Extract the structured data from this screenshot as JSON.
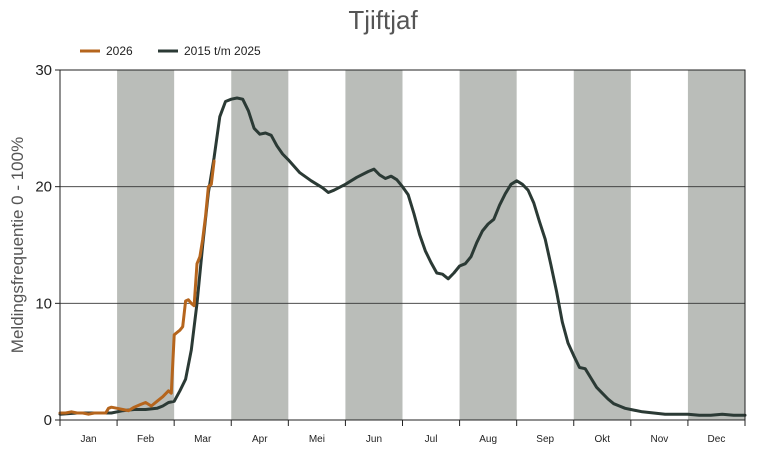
{
  "chart_data": {
    "type": "line",
    "title": "Tjiftjaf",
    "xlabel": "",
    "ylabel": "Meldingsfrequentie 0 - 100%",
    "ylim": [
      0,
      30
    ],
    "yticks": [
      0,
      10,
      20,
      30
    ],
    "months": [
      "Jan",
      "Feb",
      "Mar",
      "Apr",
      "Mei",
      "Jun",
      "Jul",
      "Aug",
      "Sep",
      "Okt",
      "Nov",
      "Dec"
    ],
    "shaded_months": [
      "Feb",
      "Apr",
      "Jun",
      "Aug",
      "Okt",
      "Dec"
    ],
    "legend_position": "top-left",
    "grid": "horizontal",
    "series": [
      {
        "name": "2026",
        "color": "#b5651d",
        "points": [
          [
            0.0,
            0.6
          ],
          [
            0.1,
            0.6
          ],
          [
            0.2,
            0.7
          ],
          [
            0.3,
            0.6
          ],
          [
            0.4,
            0.6
          ],
          [
            0.5,
            0.5
          ],
          [
            0.6,
            0.6
          ],
          [
            0.7,
            0.6
          ],
          [
            0.8,
            0.6
          ],
          [
            0.85,
            1.0
          ],
          [
            0.9,
            1.1
          ],
          [
            1.0,
            1.0
          ],
          [
            1.1,
            0.9
          ],
          [
            1.2,
            0.8
          ],
          [
            1.3,
            1.1
          ],
          [
            1.4,
            1.3
          ],
          [
            1.5,
            1.5
          ],
          [
            1.6,
            1.2
          ],
          [
            1.7,
            1.6
          ],
          [
            1.8,
            2.0
          ],
          [
            1.9,
            2.5
          ],
          [
            1.95,
            2.3
          ],
          [
            2.0,
            7.3
          ],
          [
            2.05,
            7.5
          ],
          [
            2.1,
            7.7
          ],
          [
            2.15,
            8.0
          ],
          [
            2.2,
            10.2
          ],
          [
            2.25,
            10.3
          ],
          [
            2.3,
            10.0
          ],
          [
            2.35,
            9.8
          ],
          [
            2.4,
            13.4
          ],
          [
            2.45,
            14.0
          ],
          [
            2.5,
            15.5
          ],
          [
            2.55,
            17.5
          ],
          [
            2.6,
            20.0
          ],
          [
            2.65,
            20.2
          ],
          [
            2.7,
            22.2
          ]
        ]
      },
      {
        "name": "2015 t/m 2025",
        "color": "#2b3a35",
        "points": [
          [
            0.0,
            0.5
          ],
          [
            0.3,
            0.6
          ],
          [
            0.6,
            0.6
          ],
          [
            0.9,
            0.6
          ],
          [
            1.1,
            0.8
          ],
          [
            1.3,
            0.9
          ],
          [
            1.5,
            0.9
          ],
          [
            1.7,
            1.0
          ],
          [
            1.8,
            1.2
          ],
          [
            1.9,
            1.5
          ],
          [
            2.0,
            1.6
          ],
          [
            2.1,
            2.5
          ],
          [
            2.2,
            3.5
          ],
          [
            2.3,
            6.0
          ],
          [
            2.4,
            10.0
          ],
          [
            2.5,
            15.0
          ],
          [
            2.6,
            19.5
          ],
          [
            2.7,
            22.5
          ],
          [
            2.8,
            26.0
          ],
          [
            2.9,
            27.3
          ],
          [
            3.0,
            27.5
          ],
          [
            3.1,
            27.6
          ],
          [
            3.2,
            27.5
          ],
          [
            3.3,
            26.5
          ],
          [
            3.4,
            25.0
          ],
          [
            3.5,
            24.5
          ],
          [
            3.6,
            24.6
          ],
          [
            3.7,
            24.4
          ],
          [
            3.8,
            23.5
          ],
          [
            3.9,
            22.8
          ],
          [
            4.0,
            22.3
          ],
          [
            4.2,
            21.2
          ],
          [
            4.4,
            20.5
          ],
          [
            4.6,
            19.9
          ],
          [
            4.7,
            19.5
          ],
          [
            4.8,
            19.7
          ],
          [
            5.0,
            20.2
          ],
          [
            5.2,
            20.8
          ],
          [
            5.4,
            21.3
          ],
          [
            5.5,
            21.5
          ],
          [
            5.6,
            21.0
          ],
          [
            5.7,
            20.7
          ],
          [
            5.8,
            20.9
          ],
          [
            5.9,
            20.6
          ],
          [
            6.0,
            20.0
          ],
          [
            6.1,
            19.3
          ],
          [
            6.2,
            17.7
          ],
          [
            6.3,
            15.9
          ],
          [
            6.4,
            14.5
          ],
          [
            6.5,
            13.5
          ],
          [
            6.6,
            12.6
          ],
          [
            6.7,
            12.5
          ],
          [
            6.8,
            12.1
          ],
          [
            6.9,
            12.6
          ],
          [
            7.0,
            13.2
          ],
          [
            7.1,
            13.4
          ],
          [
            7.2,
            14.0
          ],
          [
            7.3,
            15.2
          ],
          [
            7.4,
            16.2
          ],
          [
            7.5,
            16.8
          ],
          [
            7.6,
            17.2
          ],
          [
            7.7,
            18.4
          ],
          [
            7.8,
            19.4
          ],
          [
            7.9,
            20.2
          ],
          [
            8.0,
            20.5
          ],
          [
            8.1,
            20.2
          ],
          [
            8.2,
            19.7
          ],
          [
            8.3,
            18.6
          ],
          [
            8.4,
            17.0
          ],
          [
            8.5,
            15.5
          ],
          [
            8.6,
            13.3
          ],
          [
            8.7,
            11.0
          ],
          [
            8.8,
            8.4
          ],
          [
            8.9,
            6.6
          ],
          [
            9.0,
            5.5
          ],
          [
            9.1,
            4.5
          ],
          [
            9.2,
            4.4
          ],
          [
            9.3,
            3.6
          ],
          [
            9.4,
            2.8
          ],
          [
            9.5,
            2.3
          ],
          [
            9.6,
            1.8
          ],
          [
            9.7,
            1.4
          ],
          [
            9.8,
            1.2
          ],
          [
            9.9,
            1.0
          ],
          [
            10.0,
            0.9
          ],
          [
            10.2,
            0.7
          ],
          [
            10.4,
            0.6
          ],
          [
            10.6,
            0.5
          ],
          [
            10.8,
            0.5
          ],
          [
            11.0,
            0.5
          ],
          [
            11.2,
            0.4
          ],
          [
            11.4,
            0.4
          ],
          [
            11.6,
            0.5
          ],
          [
            11.8,
            0.4
          ],
          [
            12.0,
            0.4
          ]
        ]
      }
    ]
  }
}
